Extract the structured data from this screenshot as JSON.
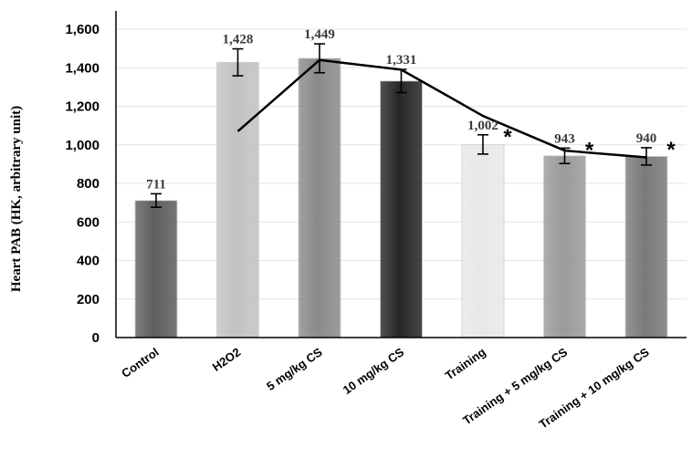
{
  "chart_data": {
    "type": "bar",
    "title": "",
    "xlabel": "",
    "ylabel": "Heart PAB (HK, arbitrary unit)",
    "ylim": [
      0,
      1600
    ],
    "yticks": [
      "0",
      "200",
      "400",
      "600",
      "800",
      "1,000",
      "1,200",
      "1,400",
      "1,600"
    ],
    "grid": true,
    "legend": "none",
    "categories": [
      "Control",
      "H2O2",
      "5 mg/kg CS",
      "10 mg/kg CS",
      "Training",
      "Training + 5 mg/kg CS",
      "Training + 10 mg/kg CS"
    ],
    "series": [
      {
        "type": "bar",
        "values": [
          711,
          1428,
          1449,
          1331,
          1002,
          943,
          940
        ],
        "value_labels": [
          "711",
          "1,428",
          "1,449",
          "1,331",
          "1,002",
          "943",
          "940"
        ],
        "error": [
          35,
          70,
          75,
          60,
          50,
          40,
          45
        ],
        "significance": [
          "",
          "",
          "",
          "",
          "*",
          "*",
          "*"
        ],
        "colors": [
          "#5e5e5e",
          "#c2c2c2",
          "#8a8a8a",
          "#262626",
          "#e8e8e8",
          "#9a9a9a",
          "#7a7a7a"
        ]
      },
      {
        "type": "line",
        "values": [
          null,
          1070,
          1440,
          1390,
          1150,
          970,
          935
        ],
        "color": "#000000"
      }
    ]
  }
}
